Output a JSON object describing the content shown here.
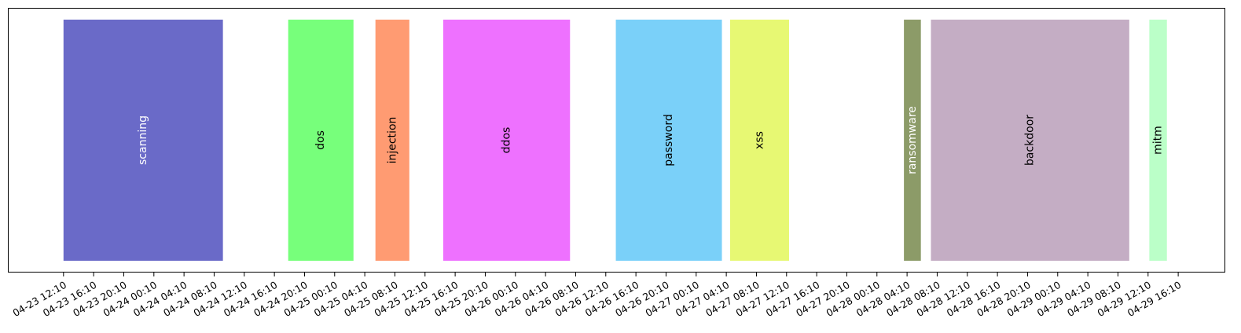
{
  "chart_data": {
    "type": "timeline",
    "x_axis": {
      "type": "datetime",
      "tick_format": "MM-DD HH:MM",
      "ticks": [
        "04-23 12:10",
        "04-23 16:10",
        "04-23 20:10",
        "04-24 00:10",
        "04-24 04:10",
        "04-24 08:10",
        "04-24 12:10",
        "04-24 16:10",
        "04-24 20:10",
        "04-25 00:10",
        "04-25 04:10",
        "04-25 08:10",
        "04-25 12:10",
        "04-25 16:10",
        "04-25 20:10",
        "04-26 00:10",
        "04-26 04:10",
        "04-26 08:10",
        "04-26 12:10",
        "04-26 16:10",
        "04-26 20:10",
        "04-27 00:10",
        "04-27 04:10",
        "04-27 08:10",
        "04-27 12:10",
        "04-27 16:10",
        "04-27 20:10",
        "04-28 00:10",
        "04-28 04:10",
        "04-28 08:10",
        "04-28 12:10",
        "04-28 16:10",
        "04-28 20:10",
        "04-29 00:10",
        "04-29 04:10",
        "04-29 08:10",
        "04-29 12:10",
        "04-29 16:10"
      ],
      "range": [
        "04-23 04:53",
        "04-29 22:25"
      ]
    },
    "y_axis": {
      "visible": false
    },
    "grid": false,
    "legend": "none",
    "events": [
      {
        "label": "scanning",
        "start": "04-23 12:10",
        "end": "04-24 09:20",
        "color": "#6a6ac8",
        "text_color": "#ffffff"
      },
      {
        "label": "dos",
        "start": "04-24 18:00",
        "end": "04-25 02:40",
        "color": "#77ff7b",
        "text_color": "#000000"
      },
      {
        "label": "injection",
        "start": "04-25 05:35",
        "end": "04-25 10:05",
        "color": "#ff9b72",
        "text_color": "#000000"
      },
      {
        "label": "ddos",
        "start": "04-25 14:35",
        "end": "04-26 07:25",
        "color": "#ee71ff",
        "text_color": "#000000"
      },
      {
        "label": "password",
        "start": "04-26 13:30",
        "end": "04-27 03:35",
        "color": "#7ad0f9",
        "text_color": "#000000"
      },
      {
        "label": "xss",
        "start": "04-27 04:40",
        "end": "04-27 12:30",
        "color": "#e7f873",
        "text_color": "#000000"
      },
      {
        "label": "ransomware",
        "start": "04-28 03:45",
        "end": "04-28 06:00",
        "color": "#8c9b68",
        "text_color": "#ffffff"
      },
      {
        "label": "backdoor",
        "start": "04-28 07:20",
        "end": "04-29 09:40",
        "color": "#c4adc4",
        "text_color": "#000000"
      },
      {
        "label": "mitm",
        "start": "04-29 12:20",
        "end": "04-29 14:40",
        "color": "#bbffc8",
        "text_color": "#000000"
      }
    ]
  }
}
